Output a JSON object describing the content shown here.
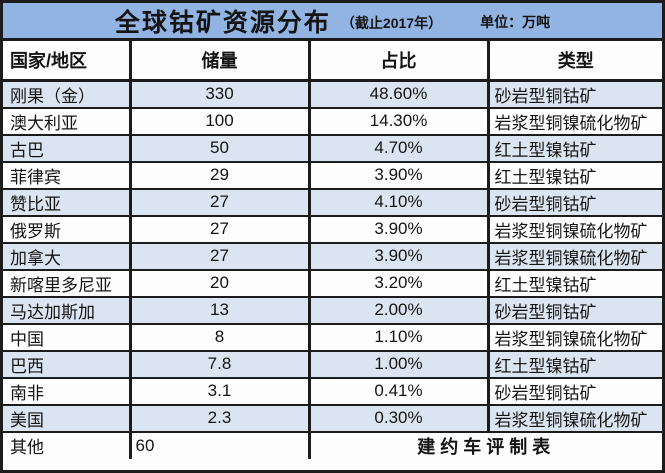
{
  "chart_data": {
    "type": "table",
    "title": "全球钴矿资源分布",
    "subtitle": "（截止2017年）",
    "unit_label": "单位：万吨",
    "columns": [
      "国家/地区",
      "储量",
      "占比",
      "类型"
    ],
    "rows": [
      {
        "country": "刚果（金）",
        "reserves": "330",
        "share": "48.60%",
        "type": "砂岩型铜钴矿"
      },
      {
        "country": "澳大利亚",
        "reserves": "100",
        "share": "14.30%",
        "type": "岩浆型铜镍硫化物矿"
      },
      {
        "country": "古巴",
        "reserves": "50",
        "share": "4.70%",
        "type": "红土型镍钴矿"
      },
      {
        "country": "菲律宾",
        "reserves": "29",
        "share": "3.90%",
        "type": "红土型镍钴矿"
      },
      {
        "country": "赞比亚",
        "reserves": "27",
        "share": "4.10%",
        "type": "砂岩型铜钴矿"
      },
      {
        "country": "俄罗斯",
        "reserves": "27",
        "share": "3.90%",
        "type": "岩浆型铜镍硫化物矿"
      },
      {
        "country": "加拿大",
        "reserves": "27",
        "share": "3.90%",
        "type": "岩浆型铜镍硫化物矿"
      },
      {
        "country": "新喀里多尼亚",
        "reserves": "20",
        "share": "3.20%",
        "type": "红土型镍钴矿"
      },
      {
        "country": "马达加斯加",
        "reserves": "13",
        "share": "2.00%",
        "type": "砂岩型铜钴矿"
      },
      {
        "country": "中国",
        "reserves": "8",
        "share": "1.10%",
        "type": "岩浆型铜镍硫化物矿"
      },
      {
        "country": "巴西",
        "reserves": "7.8",
        "share": "1.00%",
        "type": "红土型镍钴矿"
      },
      {
        "country": "南非",
        "reserves": "3.1",
        "share": "0.41%",
        "type": "砂岩型铜钴矿"
      },
      {
        "country": "美国",
        "reserves": "2.3",
        "share": "0.30%",
        "type": "岩浆型铜镍硫化物矿"
      }
    ],
    "footer_row": {
      "country": "其他",
      "reserves": "60",
      "credit": "建约车评制表"
    }
  },
  "colors": {
    "title_bg": "#92b4e2",
    "alt_row_bg": "#dbe5f1",
    "border": "#1c1c1c",
    "text": "#141414"
  }
}
